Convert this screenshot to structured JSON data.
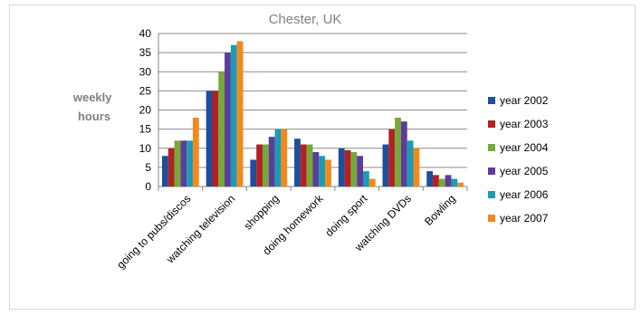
{
  "chart_data": {
    "type": "bar",
    "title": "Chester, UK",
    "ylabel_lines": [
      "weekly",
      "hours"
    ],
    "xlabel": "",
    "ylim": [
      0,
      40
    ],
    "yticks": [
      0,
      5,
      10,
      15,
      20,
      25,
      30,
      35,
      40
    ],
    "grid": true,
    "legend_position": "right",
    "categories": [
      "going to pubs/discos",
      "watching television",
      "shopping",
      "doing homework",
      "doing sport",
      "watching DVDs",
      "Bowling"
    ],
    "series": [
      {
        "name": "year 2002",
        "color": "#1f4e9a",
        "values": [
          8,
          25,
          7,
          12.5,
          10,
          11,
          4
        ]
      },
      {
        "name": "year 2003",
        "color": "#b22222",
        "values": [
          10,
          25,
          11,
          11,
          9.5,
          15,
          3
        ]
      },
      {
        "name": "year 2004",
        "color": "#76a83a",
        "values": [
          12,
          30,
          11,
          11,
          9,
          18,
          2
        ]
      },
      {
        "name": "year 2005",
        "color": "#5e3c99",
        "values": [
          12,
          35,
          13,
          9,
          8,
          17,
          3
        ]
      },
      {
        "name": "year 2006",
        "color": "#1b9bb5",
        "values": [
          12,
          37,
          15,
          8,
          4,
          12,
          2
        ]
      },
      {
        "name": "year 2007",
        "color": "#f28a1b",
        "values": [
          18,
          38,
          15,
          7,
          2,
          10,
          1
        ]
      }
    ]
  }
}
